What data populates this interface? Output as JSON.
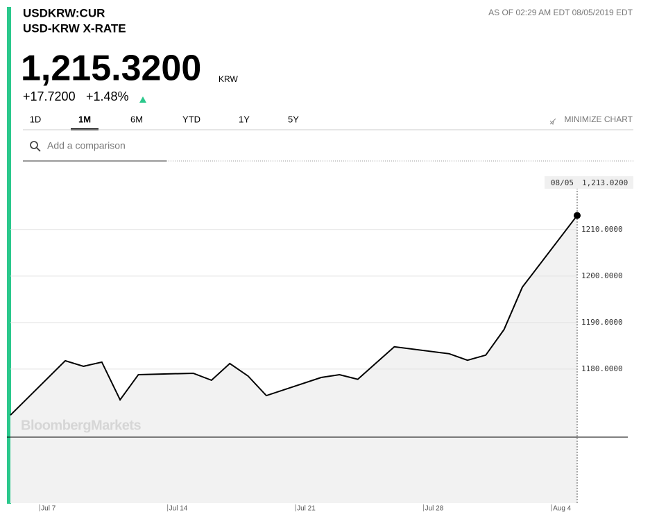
{
  "header": {
    "ticker": "USDKRW:CUR",
    "name": "USD-KRW X-RATE",
    "as_of": "AS OF 02:29 AM EDT 08/05/2019 EDT",
    "price": "1,215.3200",
    "currency": "KRW",
    "change": "+17.7200",
    "change_pct": "+1.48%"
  },
  "tabs": [
    "1D",
    "1M",
    "6M",
    "YTD",
    "1Y",
    "5Y"
  ],
  "active_tab": 1,
  "minimize": "MINIMIZE CHART",
  "search_placeholder": "Add a comparison",
  "watermark": "BloombergMarkets",
  "chart_data": {
    "type": "line",
    "color": "#000000",
    "x": [
      5.4,
      8.4,
      9.4,
      10.4,
      11.4,
      12.4,
      15.4,
      16.4,
      17.4,
      18.4,
      19.4,
      22.4,
      23.4,
      24.4,
      26.4,
      29.4,
      30.4,
      31.4,
      32.4,
      33.4,
      36.4
    ],
    "values": [
      1170.1,
      1181.8,
      1180.6,
      1181.5,
      1173.4,
      1178.8,
      1179.1,
      1177.6,
      1181.2,
      1178.5,
      1174.3,
      1178.2,
      1178.8,
      1177.8,
      1184.8,
      1183.3,
      1181.9,
      1183.0,
      1188.5,
      1197.6,
      1213.02
    ],
    "xlim": [
      5.4,
      36.4
    ],
    "xticks": [
      {
        "value": 7,
        "label": "Jul 7"
      },
      {
        "value": 14,
        "label": "Jul 14"
      },
      {
        "value": 21,
        "label": "Jul 21"
      },
      {
        "value": 28,
        "label": "Jul 28"
      },
      {
        "value": 35,
        "label": "Aug 4"
      }
    ],
    "ylim": [
      1151.2,
      1222.8
    ],
    "yticks": [
      {
        "value": 1180,
        "label": "1180.0000"
      },
      {
        "value": 1190,
        "label": "1190.0000"
      },
      {
        "value": 1200,
        "label": "1200.0000"
      },
      {
        "value": 1210,
        "label": "1210.0000"
      }
    ],
    "grid": true,
    "hover_date": "08/05",
    "hover_value": "1,213.0200"
  }
}
